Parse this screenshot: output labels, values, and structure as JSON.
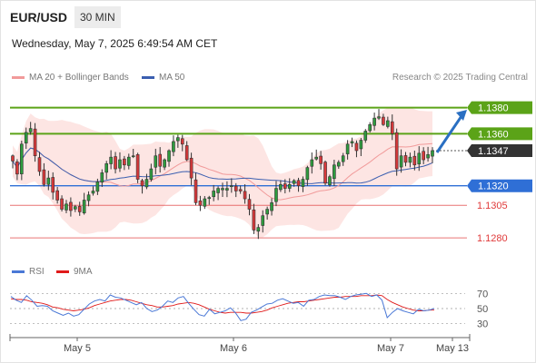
{
  "header": {
    "symbol": "EUR/USD",
    "timeframe": "30 MIN",
    "datetime": "Wednesday, May 7, 2025 6:49:54 AM CET"
  },
  "legend": {
    "ma20": "MA 20 + Bollinger Bands",
    "ma50": "MA 50",
    "copyright": "Research © 2025 Trading Central",
    "rsi": "RSI",
    "rsi_ma": "9MA"
  },
  "colors": {
    "resistance": "#5ba318",
    "support": "#2f6fd6",
    "level_red": "#e03a3a",
    "current": "#333333",
    "bullish": "#2e9b3e",
    "bearish": "#d7383a",
    "band_fill": "#fde0de",
    "ma20": "#f19a9a",
    "ma50": "#3b5fb0",
    "arrow": "#2a6fc2"
  },
  "chart_data": [
    {
      "type": "candlestick",
      "title": "EUR/USD 30 MIN",
      "price_levels": [
        {
          "value": 1.138,
          "label": "1.1380",
          "kind": "resistance"
        },
        {
          "value": 1.136,
          "label": "1.1360",
          "kind": "resistance"
        },
        {
          "value": 1.1347,
          "label": "1.1347",
          "kind": "current"
        },
        {
          "value": 1.132,
          "label": "1.1320",
          "kind": "support"
        },
        {
          "value": 1.1305,
          "label": "1.1305",
          "kind": "level"
        },
        {
          "value": 1.128,
          "label": "1.1280",
          "kind": "level"
        }
      ],
      "x_ticks": [
        "May 5",
        "May 6",
        "May 7",
        "May 13"
      ],
      "ylim": [
        1.1271,
        1.1393
      ],
      "forecast_arrow": {
        "from": 1.1347,
        "to": 1.1377
      },
      "closes": [
        1.1339,
        1.1329,
        1.1352,
        1.1361,
        1.1364,
        1.1343,
        1.1331,
        1.1321,
        1.1326,
        1.1315,
        1.1309,
        1.1302,
        1.1306,
        1.1301,
        1.1304,
        1.13,
        1.1309,
        1.1313,
        1.1316,
        1.1323,
        1.133,
        1.1337,
        1.1342,
        1.1333,
        1.134,
        1.1336,
        1.1342,
        1.1343,
        1.1325,
        1.132,
        1.1325,
        1.1333,
        1.1343,
        1.1335,
        1.134,
        1.1347,
        1.1354,
        1.1357,
        1.1352,
        1.134,
        1.1326,
        1.1307,
        1.1305,
        1.131,
        1.1311,
        1.1316,
        1.1318,
        1.1318,
        1.1318,
        1.132,
        1.1316,
        1.1316,
        1.131,
        1.1302,
        1.1286,
        1.1288,
        1.1297,
        1.1302,
        1.1307,
        1.1318,
        1.1321,
        1.1318,
        1.1321,
        1.1324,
        1.132,
        1.1325,
        1.1334,
        1.134,
        1.1342,
        1.1337,
        1.1322,
        1.1327,
        1.1336,
        1.1338,
        1.1343,
        1.1352,
        1.1354,
        1.1347,
        1.1355,
        1.1362,
        1.1367,
        1.1372,
        1.1373,
        1.1367,
        1.137,
        1.136,
        1.1333,
        1.1343,
        1.1338,
        1.1342,
        1.1336,
        1.1345,
        1.134,
        1.1344,
        1.1347
      ],
      "candles_note": "30-minute OHLC candles; closes listed above, highs/lows approximated"
    },
    {
      "type": "line",
      "title": "RSI",
      "series": [
        {
          "name": "RSI"
        },
        {
          "name": "9MA"
        }
      ],
      "y_ticks": [
        70,
        50,
        30
      ],
      "ylim": [
        20,
        80
      ],
      "rsi_values": [
        66,
        61,
        58,
        67,
        61,
        53,
        54,
        53,
        47,
        44,
        41,
        44,
        40,
        42,
        49,
        56,
        60,
        62,
        60,
        68,
        65,
        64,
        61,
        58,
        55,
        58,
        50,
        46,
        48,
        53,
        60,
        58,
        64,
        66,
        57,
        49,
        42,
        40,
        49,
        43,
        45,
        47,
        51,
        44,
        34,
        36,
        45,
        48,
        52,
        56,
        57,
        61,
        63,
        60,
        57,
        58,
        53,
        61,
        62,
        66,
        68,
        67,
        67,
        65,
        62,
        66,
        68,
        69,
        70,
        66,
        68,
        61,
        38,
        45,
        50,
        47,
        45,
        43,
        49,
        47,
        48,
        50
      ],
      "rsi_ma_values": [
        63,
        62,
        62,
        61,
        59,
        58,
        57,
        55,
        52,
        51,
        49,
        48,
        47,
        48,
        49,
        51,
        54,
        56,
        58,
        60,
        61,
        62,
        62,
        61,
        59,
        57,
        55,
        54,
        52,
        52,
        53,
        54,
        56,
        57,
        58,
        57,
        55,
        52,
        49,
        47,
        45,
        44,
        45,
        45,
        45,
        44,
        44,
        45,
        46,
        48,
        51,
        53,
        55,
        57,
        58,
        59,
        59,
        60,
        61,
        62,
        63,
        64,
        65,
        65,
        66,
        66,
        66,
        67,
        67,
        67,
        68,
        67,
        62,
        58,
        55,
        52,
        50,
        48,
        47,
        47,
        48,
        48
      ]
    }
  ]
}
